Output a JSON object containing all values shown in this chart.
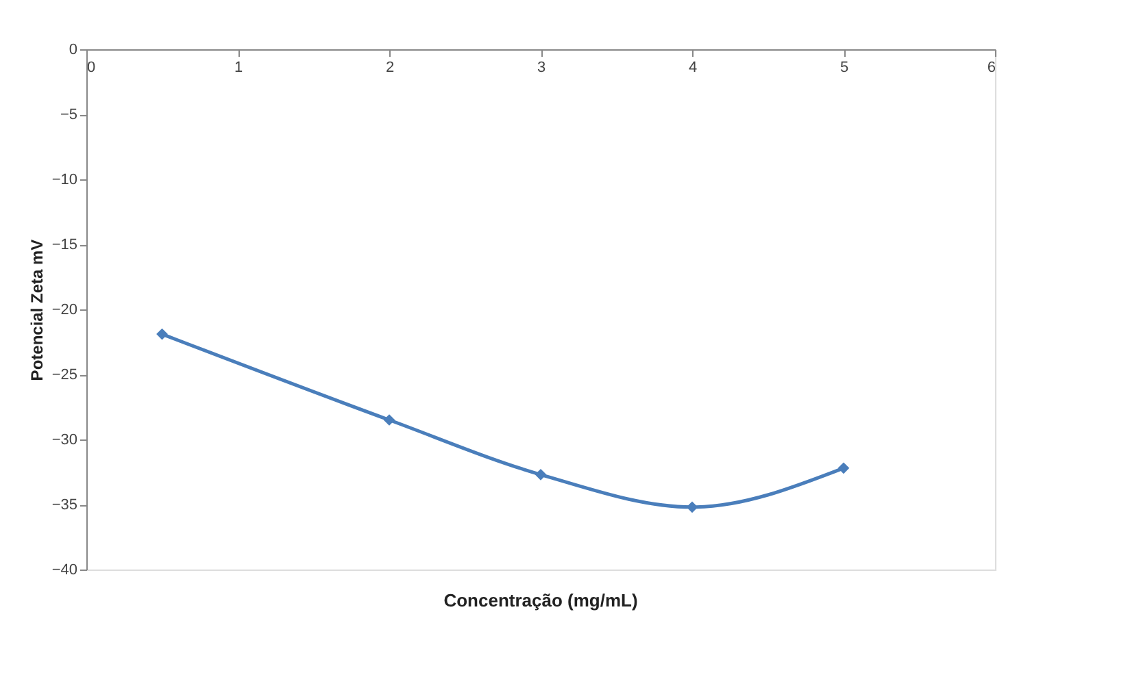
{
  "chart_data": {
    "type": "line",
    "xlabel": "Concentração (mg/mL)",
    "ylabel": "Potencial Zeta mV",
    "x": [
      0.5,
      2,
      3,
      4,
      5
    ],
    "series": [
      {
        "color": "#4a7ebb",
        "values": [
          -21.9,
          -28.5,
          -32.7,
          -35.2,
          -32.2
        ]
      }
    ],
    "xlim": [
      0,
      6
    ],
    "xticks": [
      0,
      1,
      2,
      3,
      4,
      5,
      6
    ],
    "ylim": [
      -40,
      0
    ],
    "yticks": [
      -40,
      -35,
      -30,
      -25,
      -20,
      -15,
      -10,
      -5,
      0
    ],
    "marker": "diamond",
    "line_style": "solid",
    "grid": false,
    "legend": false
  }
}
